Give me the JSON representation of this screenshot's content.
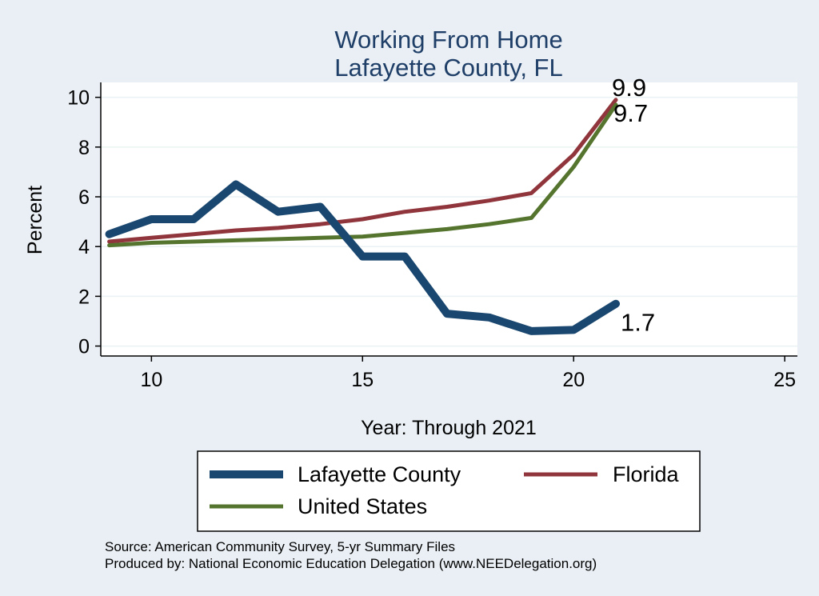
{
  "chart_data": {
    "type": "line",
    "title": [
      "Working From Home",
      "Lafayette County, FL"
    ],
    "xlabel": "Year: Through 2021",
    "ylabel": "Percent",
    "xlim": [
      8.8,
      25.3
    ],
    "ylim": [
      -0.4,
      10.6
    ],
    "xticks": [
      10,
      15,
      20,
      25
    ],
    "yticks": [
      0,
      2,
      4,
      6,
      8,
      10
    ],
    "grid": true,
    "legend_position": "bottom",
    "series": [
      {
        "name": "Lafayette County",
        "color": "#1a476f",
        "x": [
          9,
          10,
          11,
          12,
          13,
          14,
          15,
          16,
          17,
          18,
          19,
          20,
          21
        ],
        "y": [
          4.5,
          5.1,
          5.1,
          6.5,
          5.4,
          5.6,
          3.6,
          3.6,
          1.3,
          1.15,
          0.6,
          0.65,
          1.7
        ],
        "end_label": "1.7"
      },
      {
        "name": "Florida",
        "color": "#90353b",
        "x": [
          9,
          10,
          11,
          12,
          13,
          14,
          15,
          16,
          17,
          18,
          19,
          20,
          21
        ],
        "y": [
          4.2,
          4.35,
          4.5,
          4.65,
          4.75,
          4.9,
          5.1,
          5.4,
          5.6,
          5.85,
          6.15,
          7.7,
          9.9
        ],
        "end_label": "9.9"
      },
      {
        "name": "United States",
        "color": "#55752f",
        "x": [
          9,
          10,
          11,
          12,
          13,
          14,
          15,
          16,
          17,
          18,
          19,
          20,
          21
        ],
        "y": [
          4.05,
          4.15,
          4.2,
          4.25,
          4.3,
          4.35,
          4.4,
          4.55,
          4.7,
          4.9,
          5.15,
          7.2,
          9.7
        ],
        "end_label": "9.7"
      }
    ],
    "notes": [
      "Source: American Community Survey, 5-yr Summary Files",
      "Produced by: National Economic Education Delegation (www.NEEDelegation.org)"
    ]
  }
}
